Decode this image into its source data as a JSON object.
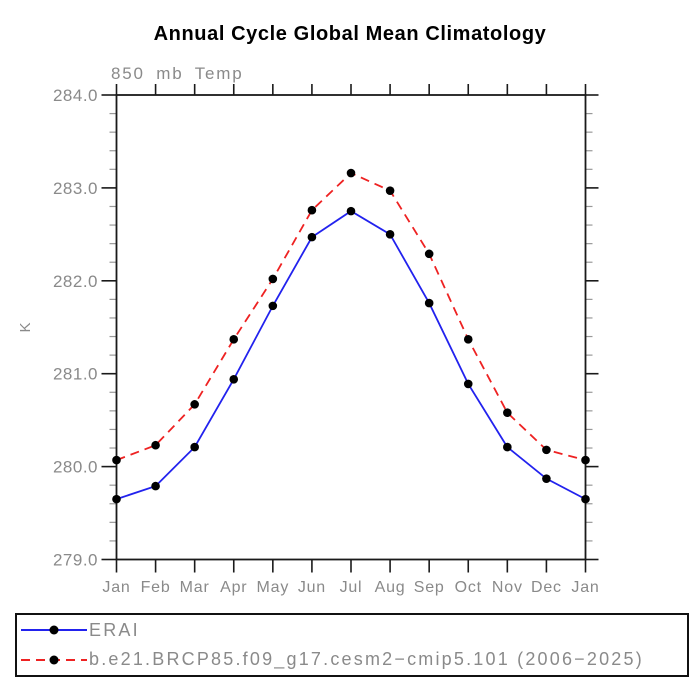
{
  "header": {
    "title": "Annual Cycle Global Mean Climatology",
    "subtitle": "850 mb Temp"
  },
  "chart_data": {
    "type": "line",
    "title": "Annual Cycle Global Mean Climatology",
    "subtitle": "850 mb Temp",
    "ylabel": "K",
    "xlabel": "",
    "x": [
      "Jan",
      "Feb",
      "Mar",
      "Apr",
      "May",
      "Jun",
      "Jul",
      "Aug",
      "Sep",
      "Oct",
      "Nov",
      "Dec",
      "Jan"
    ],
    "series": [
      {
        "name": "ERAI",
        "color": "#2222ee",
        "line_style": "solid",
        "marker": "black-dot",
        "values": [
          279.65,
          279.79,
          280.21,
          280.94,
          281.73,
          282.47,
          282.75,
          282.5,
          281.76,
          280.89,
          280.21,
          279.87,
          279.65
        ]
      },
      {
        "name": "b.e21.BRCP85.f09_g17.cesm2−cmip5.101 (2006−2025)",
        "color": "#ee2222",
        "line_style": "dashed",
        "marker": "black-dot",
        "values": [
          280.07,
          280.23,
          280.67,
          281.37,
          282.02,
          282.76,
          283.16,
          282.97,
          282.29,
          281.37,
          280.58,
          280.18,
          280.07
        ]
      }
    ],
    "ylim": [
      279.0,
      284.0
    ],
    "ytick_major_step": 1.0,
    "ytick_minor_step": 0.2,
    "ytick_labels": [
      "279.0",
      "280.0",
      "281.0",
      "282.0",
      "283.0",
      "284.0"
    ],
    "grid": false,
    "legend_position": "bottom-box"
  },
  "legend": {
    "items": [
      {
        "label": "ERAI"
      },
      {
        "label": "b.e21.BRCP85.f09_g17.cesm2−cmip5.101 (2006−2025)"
      }
    ]
  },
  "colors": {
    "series_erai": "#2222ee",
    "series_model": "#ee2222",
    "marker": "#000000",
    "axis": "#1a1a1a",
    "minor_tick": "#999999",
    "label_text": "#8a8a8a",
    "title_text": "#000000",
    "background": "#ffffff"
  }
}
